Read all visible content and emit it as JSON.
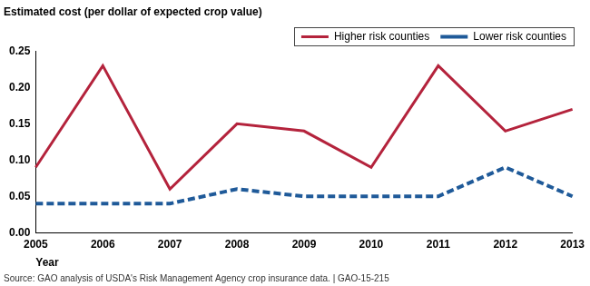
{
  "chart_data": {
    "type": "line",
    "y_label": "Estimated cost (per dollar of expected crop value)",
    "x_label": "Year",
    "source": "Source: GAO analysis of USDA's Risk Management Agency crop insurance data. | GAO-15-215",
    "categories": [
      "2005",
      "2006",
      "2007",
      "2008",
      "2009",
      "2010",
      "2011",
      "2012",
      "2013"
    ],
    "series": [
      {
        "name": "Higher risk counties",
        "color": "#b4233c",
        "line_style": "solid",
        "values": [
          0.09,
          0.23,
          0.06,
          0.15,
          0.14,
          0.09,
          0.23,
          0.14,
          0.17
        ]
      },
      {
        "name": "Lower risk counties",
        "color": "#1f5a99",
        "line_style": "dashed",
        "values": [
          0.04,
          0.04,
          0.04,
          0.06,
          0.05,
          0.05,
          0.05,
          0.09,
          0.05
        ]
      }
    ],
    "ylim": [
      0,
      0.25
    ],
    "yticks": [
      {
        "value": 0,
        "label": "0.00"
      },
      0.05,
      {
        "value": 0.1,
        "label": "0.10"
      },
      0.15,
      {
        "value": 0.2,
        "label": "0.20"
      },
      0.25
    ],
    "grid": false,
    "legend": "top-right"
  }
}
